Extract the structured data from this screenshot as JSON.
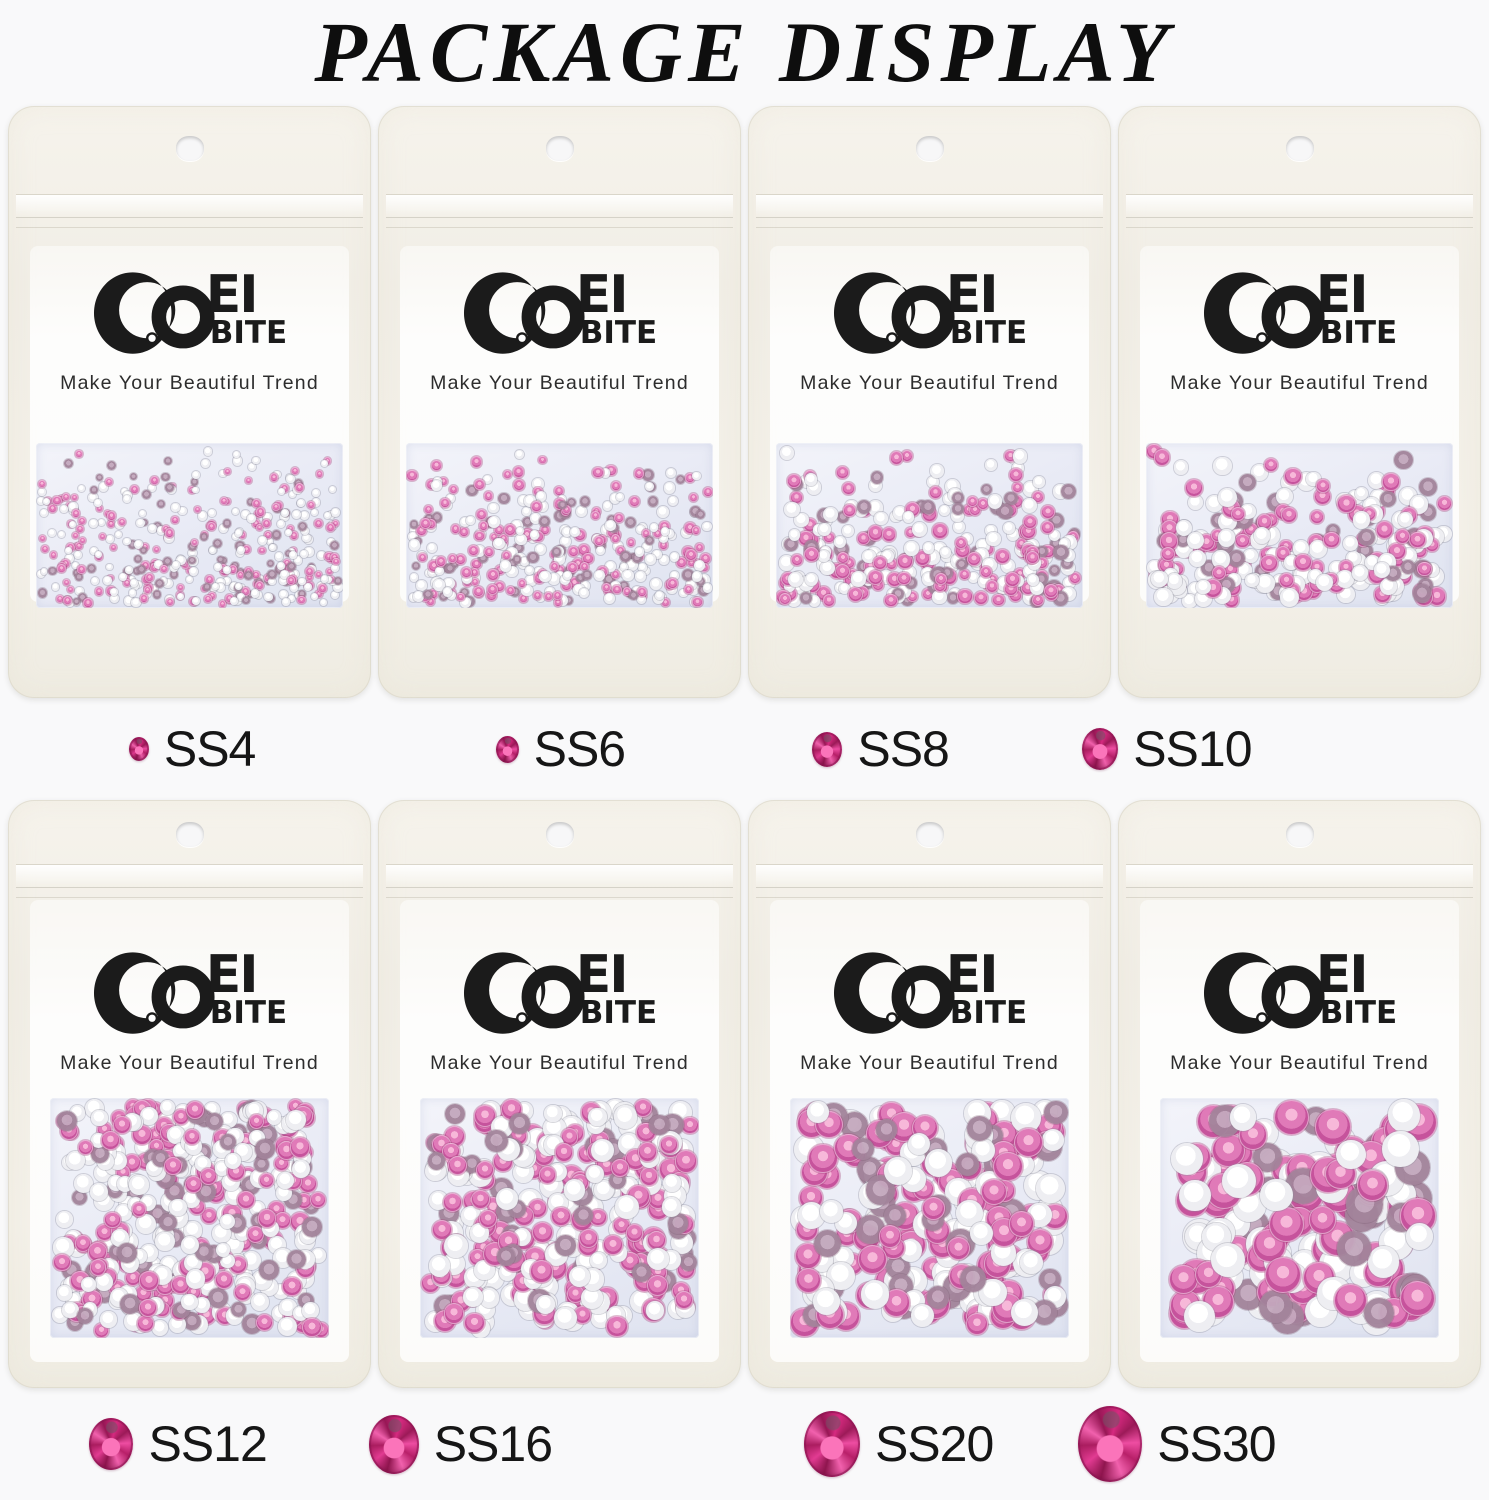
{
  "title": "PACKAGE DISPLAY",
  "brand": {
    "logo_ei": "EI",
    "logo_bite": "BITE",
    "tagline": "Make Your Beautiful Trend"
  },
  "colors": {
    "page_bg": "#f9f9fa",
    "title_text": "#0e0e0e",
    "bag_cream": "#f3f0e8",
    "window_tint": "#e8eaf5",
    "stone_pink": "#d878b2",
    "stone_silver": "#ededf1",
    "stone_mauve": "#a2839a",
    "gem_pink": "#e0348c"
  },
  "icons": {
    "brand_mark": "brand-mark-icon",
    "gem": "rhinestone-gem-icon"
  },
  "packages": [
    {
      "label": "SS4",
      "row": 1,
      "icon_size": 20,
      "stone_size": 8,
      "stone_count": 420
    },
    {
      "label": "SS6",
      "row": 1,
      "icon_size": 23,
      "stone_size": 10,
      "stone_count": 360
    },
    {
      "label": "SS8",
      "row": 1,
      "icon_size": 30,
      "stone_size": 13,
      "stone_count": 300
    },
    {
      "label": "SS10",
      "row": 1,
      "icon_size": 36,
      "stone_size": 16,
      "stone_count": 260
    },
    {
      "label": "SS12",
      "row": 2,
      "icon_size": 44,
      "stone_size": 17,
      "stone_count": 400
    },
    {
      "label": "SS16",
      "row": 2,
      "icon_size": 50,
      "stone_size": 20,
      "stone_count": 330
    },
    {
      "label": "SS20",
      "row": 2,
      "icon_size": 56,
      "stone_size": 25,
      "stone_count": 240
    },
    {
      "label": "SS30",
      "row": 2,
      "icon_size": 64,
      "stone_size": 31,
      "stone_count": 170
    }
  ]
}
